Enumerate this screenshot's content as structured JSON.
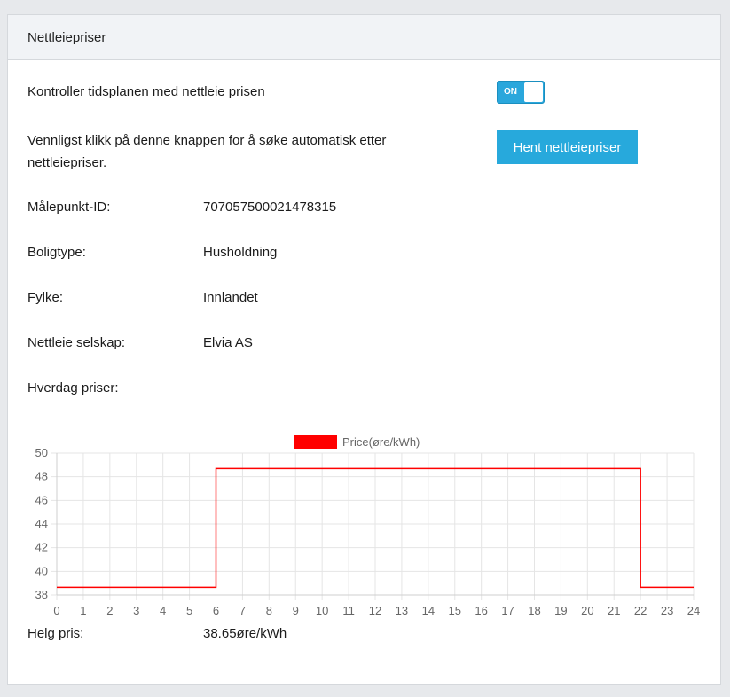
{
  "panel": {
    "title": "Nettleiepriser"
  },
  "schedule": {
    "label": "Kontroller tidsplanen med nettleie prisen",
    "toggle_state": "ON"
  },
  "fetch": {
    "instruction_line1": "Vennligst klikk på denne knappen for å søke automatisk etter",
    "instruction_line2": "nettleiepriser.",
    "button_label": "Hent nettleiepriser"
  },
  "fields": [
    {
      "label": "Målepunkt-ID:",
      "value": "707057500021478315"
    },
    {
      "label": "Boligtype:",
      "value": "Husholdning"
    },
    {
      "label": "Fylke:",
      "value": "Innlandet"
    },
    {
      "label": "Nettleie selskap:",
      "value": "Elvia AS"
    }
  ],
  "weekday": {
    "label": "Hverdag priser:"
  },
  "weekend": {
    "label": "Helg pris:",
    "value": "38.65øre/kWh"
  },
  "chart_data": {
    "type": "line",
    "step": true,
    "legend": "top-center",
    "grid": true,
    "x": [
      0,
      6,
      22,
      24
    ],
    "series": [
      {
        "name": "Price(øre/kWh)",
        "color": "#ff0000",
        "values": [
          38.65,
          48.7,
          38.65,
          38.65
        ]
      }
    ],
    "xlim": [
      0,
      24
    ],
    "ylim": [
      38,
      50
    ],
    "xticks": [
      "0",
      "1",
      "2",
      "3",
      "4",
      "5",
      "6",
      "7",
      "8",
      "9",
      "10",
      "11",
      "12",
      "13",
      "14",
      "15",
      "16",
      "17",
      "18",
      "19",
      "20",
      "21",
      "22",
      "23",
      "24"
    ],
    "yticks": [
      "38",
      "40",
      "42",
      "44",
      "46",
      "48",
      "50"
    ]
  }
}
